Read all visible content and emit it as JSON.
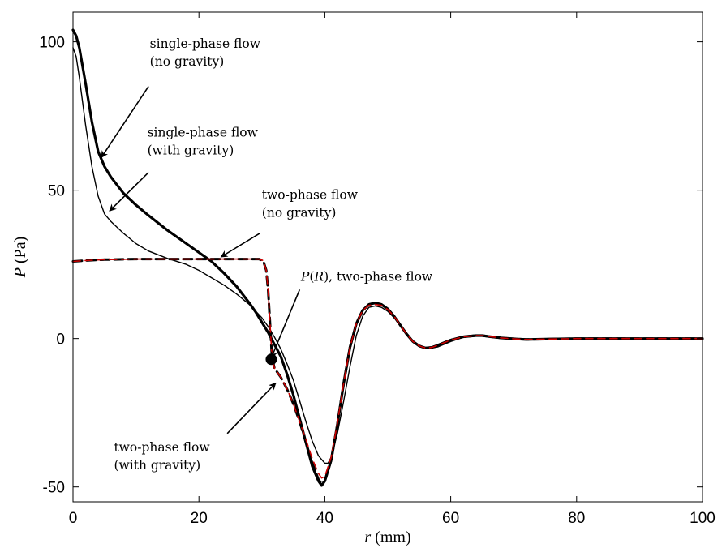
{
  "chart_data": {
    "type": "line",
    "xlabel": {
      "var": "r",
      "unit": " (mm)"
    },
    "ylabel": {
      "var": "P",
      "unit": " (Pa)"
    },
    "xlim": [
      0,
      100
    ],
    "ylim": [
      -55,
      110
    ],
    "xticks": [
      0,
      20,
      40,
      60,
      80,
      100
    ],
    "yticks": [
      100,
      50,
      0,
      -50
    ],
    "ytick_labels": [
      "100",
      "50",
      "0",
      "-50"
    ],
    "grid": false,
    "series": [
      {
        "id": "single-no-gravity",
        "color": "#000000",
        "style": "solid-thick",
        "x": [
          0,
          0.5,
          1,
          2,
          3,
          4,
          5,
          6,
          8,
          10,
          12,
          15,
          18,
          20,
          22,
          24,
          26,
          28,
          29,
          30,
          31,
          32,
          33,
          34,
          35,
          36,
          37,
          38,
          39,
          39.5,
          40,
          41,
          42,
          43,
          44,
          45,
          46,
          47,
          48,
          49,
          50,
          51,
          52,
          53,
          54,
          55,
          56,
          57,
          58,
          60,
          62,
          64,
          65,
          66,
          68,
          70,
          72,
          75,
          78,
          80,
          85,
          90,
          95,
          100
        ],
        "y": [
          104,
          102,
          98,
          86,
          73,
          63,
          58,
          54.5,
          49,
          45,
          41.5,
          36.5,
          32,
          29,
          26,
          22,
          17.5,
          12,
          9,
          5.5,
          2,
          -2,
          -6,
          -12,
          -19,
          -27,
          -35,
          -43,
          -48,
          -49.5,
          -48,
          -41,
          -29,
          -15,
          -3,
          5,
          9.5,
          11.5,
          12,
          11.5,
          10,
          7.5,
          4.5,
          1.5,
          -1,
          -2.5,
          -3.2,
          -3,
          -2.2,
          -0.5,
          0.6,
          1,
          1,
          0.7,
          0.2,
          -0.1,
          -0.3,
          -0.2,
          -0.1,
          0,
          0,
          0,
          0,
          0
        ]
      },
      {
        "id": "single-with-gravity",
        "color": "#000000",
        "style": "solid-thin",
        "x": [
          0,
          0.5,
          1,
          2,
          3,
          4,
          5,
          6,
          8,
          10,
          12,
          15,
          18,
          20,
          22,
          24,
          26,
          28,
          30,
          31,
          32,
          33,
          34,
          35,
          36,
          37,
          38,
          39,
          40,
          40.5,
          41,
          42,
          43,
          44,
          45,
          46,
          47,
          48,
          49,
          50,
          51,
          52,
          53,
          54,
          55,
          56,
          57,
          58,
          60,
          62,
          64,
          65,
          66,
          68,
          70,
          72,
          75,
          78,
          80,
          85,
          90,
          95,
          100
        ],
        "y": [
          98,
          95,
          88,
          72,
          58,
          48,
          42,
          39.5,
          35.5,
          32,
          29.5,
          27,
          25,
          23,
          20.5,
          18,
          15,
          11.5,
          7,
          4,
          0.5,
          -3.5,
          -8.5,
          -14,
          -21,
          -28,
          -34.5,
          -39.5,
          -42,
          -42,
          -40,
          -32,
          -21,
          -9.5,
          1,
          7.5,
          10.5,
          11,
          10.5,
          9.2,
          7,
          4.5,
          1.5,
          -1,
          -2.5,
          -3.2,
          -3.2,
          -2.8,
          -1,
          0.4,
          0.9,
          1,
          0.9,
          0.4,
          0,
          -0.3,
          -0.3,
          -0.2,
          -0.1,
          0,
          0,
          0,
          0
        ]
      },
      {
        "id": "two-phase-no-gravity",
        "color": "#000000",
        "style": "dashed-thick",
        "x": [
          0,
          2,
          5,
          10,
          15,
          20,
          25,
          28,
          29.5,
          30.2,
          30.7,
          31,
          31.3,
          31.6,
          32,
          33,
          34,
          35,
          36,
          37,
          38,
          39,
          39.5,
          40,
          41,
          42,
          43,
          44,
          45,
          46,
          47,
          48,
          49,
          50,
          51,
          52,
          53,
          54,
          55,
          56,
          57,
          58,
          60,
          62,
          64,
          65,
          66,
          68,
          70,
          72,
          75,
          78,
          80,
          85,
          90,
          95,
          100
        ],
        "y": [
          26,
          26.3,
          26.6,
          26.8,
          26.8,
          26.8,
          26.8,
          26.8,
          26.8,
          26.3,
          23,
          16,
          5,
          -6,
          -10,
          -13,
          -17,
          -22,
          -28,
          -35,
          -42,
          -47.5,
          -49,
          -48,
          -41,
          -29,
          -15,
          -3,
          5,
          9.5,
          11.5,
          12,
          11.5,
          10,
          7.5,
          4.5,
          1.5,
          -1,
          -2.5,
          -3.2,
          -3,
          -2.2,
          -0.5,
          0.6,
          1,
          1,
          0.7,
          0.2,
          -0.1,
          -0.3,
          -0.2,
          -0.1,
          0,
          0,
          0,
          0,
          0
        ]
      },
      {
        "id": "two-phase-with-gravity",
        "color": "#cc0000",
        "style": "dashed-thin",
        "x": [
          0,
          2,
          5,
          10,
          15,
          20,
          25,
          28,
          29.5,
          30.2,
          30.7,
          31,
          31.3,
          31.6,
          32,
          33,
          34,
          35,
          36,
          37,
          38,
          39,
          39.5,
          40,
          41,
          42,
          43,
          44,
          45,
          46,
          47,
          48,
          49,
          50,
          51,
          52,
          53,
          54,
          55,
          56,
          57,
          58,
          60,
          62,
          64,
          65,
          66,
          68,
          70,
          72,
          75,
          78,
          80,
          85,
          90,
          95,
          100
        ],
        "y": [
          26,
          26.3,
          26.6,
          26.8,
          26.8,
          26.8,
          26.8,
          26.8,
          26.8,
          26.3,
          23,
          16,
          5,
          -6,
          -10,
          -13,
          -17,
          -22,
          -28,
          -34,
          -40.5,
          -45.5,
          -47,
          -46.5,
          -40,
          -28.5,
          -15,
          -3,
          5,
          9.5,
          11.2,
          11.5,
          11.2,
          9.8,
          7.5,
          4.5,
          1.5,
          -1,
          -2.5,
          -3.2,
          -3,
          -2.2,
          -0.5,
          0.6,
          1,
          1,
          0.7,
          0.2,
          -0.1,
          -0.3,
          -0.2,
          -0.1,
          0,
          0,
          0,
          0,
          0
        ]
      }
    ],
    "marker": {
      "x": 31.5,
      "y": -7
    },
    "annotations": [
      {
        "id": "single-no-gravity",
        "lines": [
          "single-phase flow",
          "(no gravity)"
        ],
        "text_at": [
          12.2,
          98
        ],
        "arrow_from": [
          12,
          85
        ],
        "arrow_to": [
          4.5,
          61
        ]
      },
      {
        "id": "single-with-gravity",
        "lines": [
          "single-phase flow",
          "(with gravity)"
        ],
        "text_at": [
          11.8,
          68
        ],
        "arrow_from": [
          12,
          56
        ],
        "arrow_to": [
          5.8,
          43
        ]
      },
      {
        "id": "two-phase-no-gravity",
        "lines": [
          "two-phase flow",
          "(no gravity)"
        ],
        "text_at": [
          30,
          47
        ],
        "arrow_from": [
          29.7,
          35.5
        ],
        "arrow_to": [
          23.5,
          27.5
        ]
      },
      {
        "id": "P-R-two-phase",
        "lines": [
          "P(R), two-phase flow"
        ],
        "text_at": [
          36.2,
          19.5
        ],
        "arrow_from": [
          36,
          16.5
        ],
        "arrow_to": [
          31.5,
          -6.5
        ]
      },
      {
        "id": "two-phase-with-gravity",
        "lines": [
          "two-phase flow",
          "(with gravity)"
        ],
        "text_at": [
          6.5,
          -38
        ],
        "arrow_from": [
          24.5,
          -32
        ],
        "arrow_to": [
          32.2,
          -15
        ]
      }
    ]
  }
}
